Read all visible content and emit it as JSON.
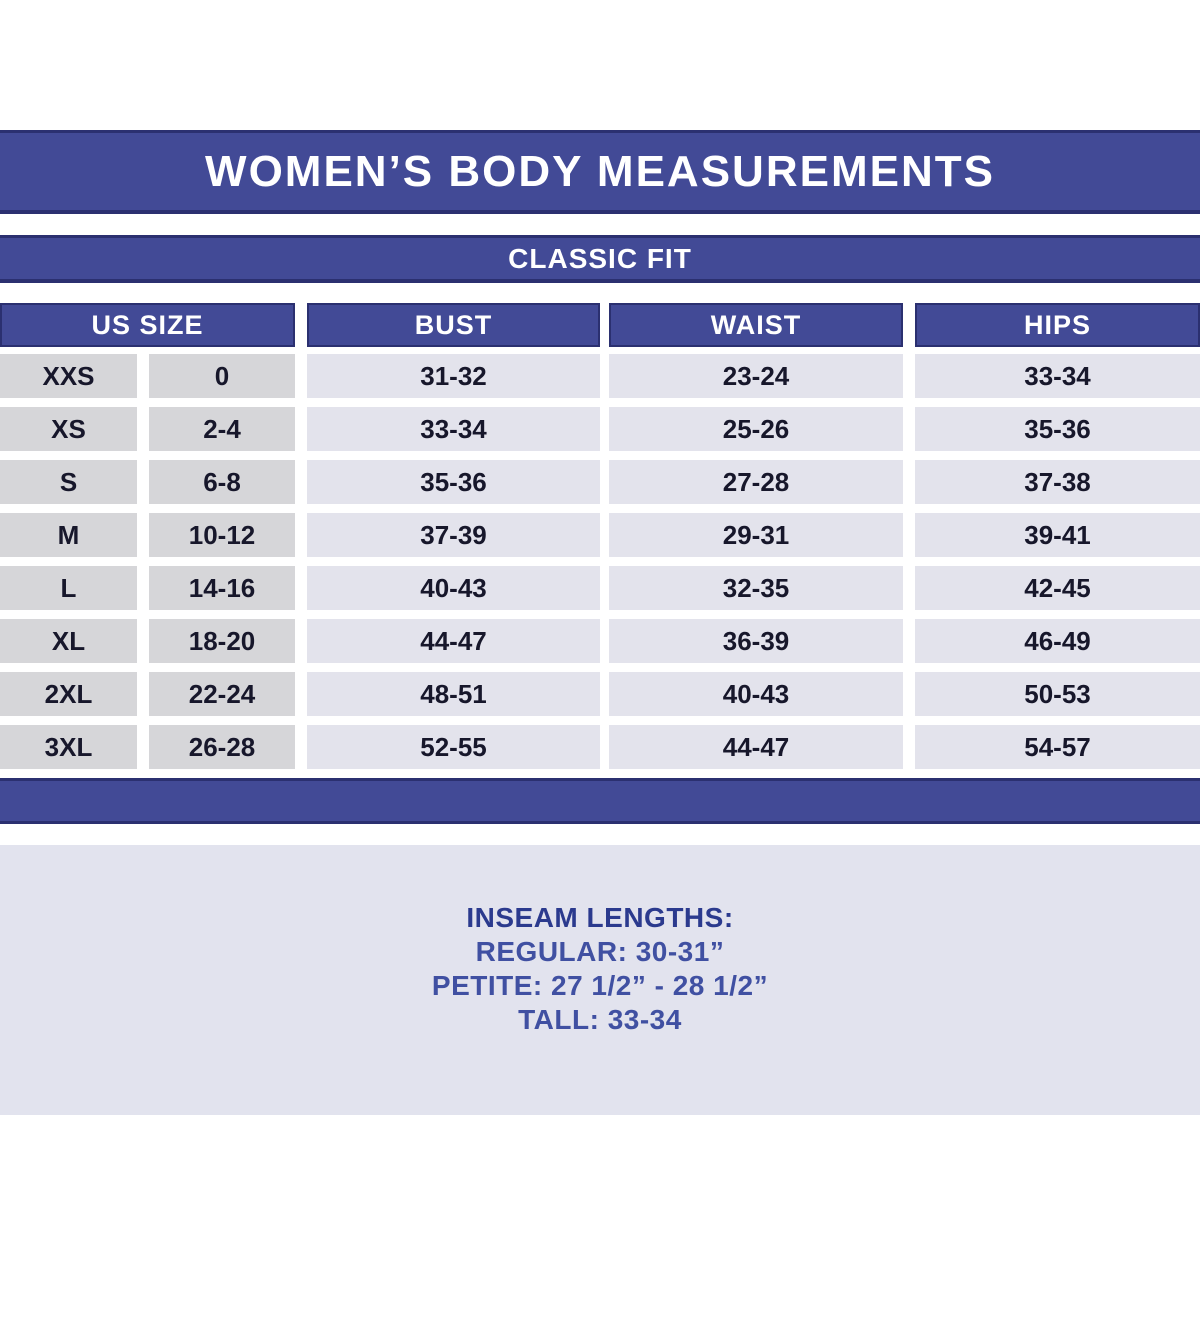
{
  "title": "WOMEN’S BODY MEASUREMENTS",
  "subtitle": "CLASSIC FIT",
  "table": {
    "headers": [
      "US SIZE",
      "BUST",
      "WAIST",
      "HIPS"
    ],
    "rows": [
      {
        "size": "XXS",
        "us_size": "0",
        "bust": "31-32",
        "waist": "23-24",
        "hips": "33-34"
      },
      {
        "size": "XS",
        "us_size": "2-4",
        "bust": "33-34",
        "waist": "25-26",
        "hips": "35-36"
      },
      {
        "size": "S",
        "us_size": "6-8",
        "bust": "35-36",
        "waist": "27-28",
        "hips": "37-38"
      },
      {
        "size": "M",
        "us_size": "10-12",
        "bust": "37-39",
        "waist": "29-31",
        "hips": "39-41"
      },
      {
        "size": "L",
        "us_size": "14-16",
        "bust": "40-43",
        "waist": "32-35",
        "hips": "42-45"
      },
      {
        "size": "XL",
        "us_size": "18-20",
        "bust": "44-47",
        "waist": "36-39",
        "hips": "46-49"
      },
      {
        "size": "2XL",
        "us_size": "22-24",
        "bust": "48-51",
        "waist": "40-43",
        "hips": "50-53"
      },
      {
        "size": "3XL",
        "us_size": "26-28",
        "bust": "52-55",
        "waist": "44-47",
        "hips": "54-57"
      }
    ]
  },
  "inseam": {
    "heading": "INSEAM LENGTHS:",
    "lines": [
      "REGULAR: 30-31”",
      "PETITE: 27 1/2” - 28 1/2”",
      "TALL: 33-34"
    ]
  },
  "colors": {
    "banner_indigo": "#424a96",
    "banner_border": "#2b3070",
    "cell_gray": "#d6d6d9",
    "cell_light": "#e3e3ec",
    "cell_text": "#17172b",
    "footer_lavender": "#e2e3ee",
    "footer_text": "#4050a2"
  }
}
